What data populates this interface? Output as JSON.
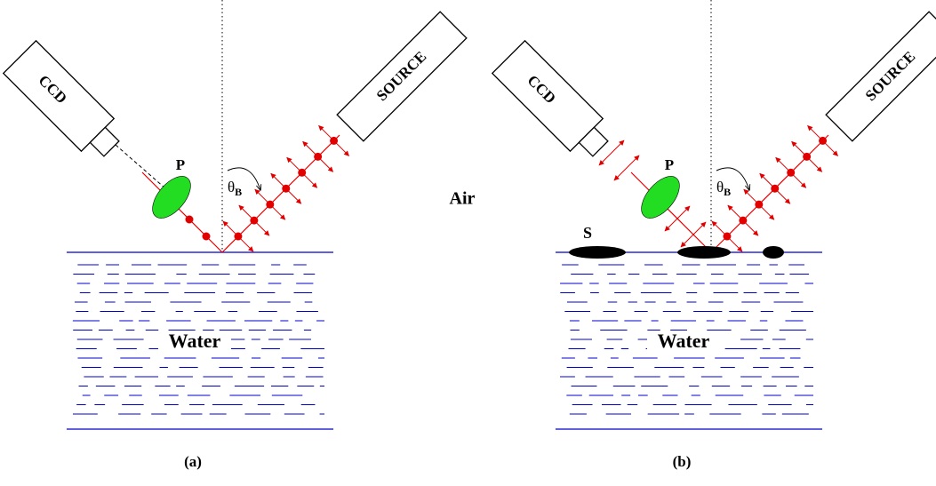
{
  "air": "Air",
  "panels": [
    {
      "label": "(a)",
      "ccd": "CCD",
      "source": "SOURCE",
      "polarizer": "P",
      "angle": {
        "symbol": "θ",
        "subscript": "B"
      },
      "medium": "Water"
    },
    {
      "label": "(b)",
      "ccd": "CCD",
      "source": "SOURCE",
      "polarizer": "P",
      "angle": {
        "symbol": "θ",
        "subscript": "B"
      },
      "medium": "Water",
      "surfactant": "S"
    }
  ]
}
